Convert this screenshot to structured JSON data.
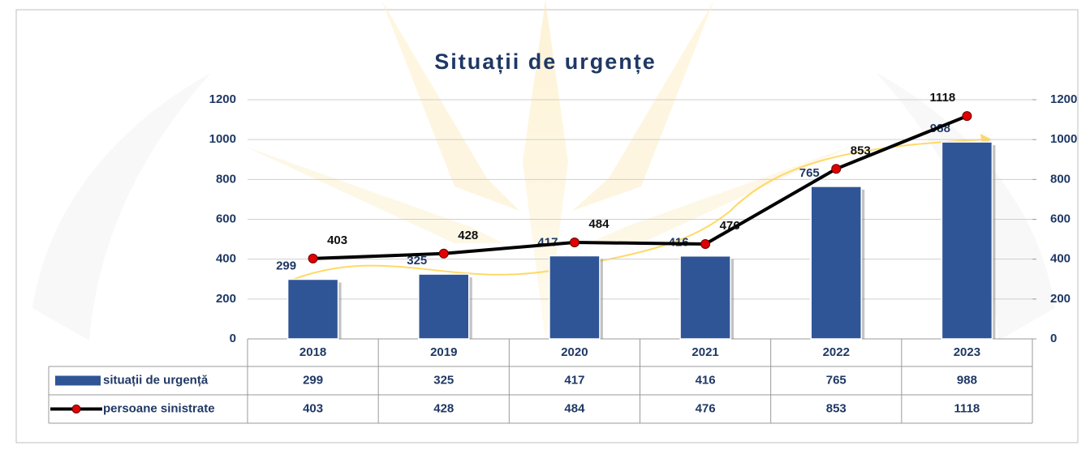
{
  "chart_data": {
    "type": "bar-line",
    "title": "Situații de urgențe",
    "categories": [
      "2018",
      "2019",
      "2020",
      "2021",
      "2022",
      "2023"
    ],
    "series": [
      {
        "name": "situații de urgență",
        "type": "bar",
        "color": "#2f5597",
        "values": [
          299,
          325,
          417,
          416,
          765,
          988
        ]
      },
      {
        "name": "persoane sinistrate",
        "type": "line",
        "color": "#000000",
        "marker_color": "#e00000",
        "axis": "y2",
        "values": [
          403,
          428,
          484,
          476,
          853,
          1118
        ]
      }
    ],
    "ylim": [
      0,
      1200
    ],
    "yticks": [
      0,
      200,
      400,
      600,
      800,
      1000,
      1200
    ],
    "y2lim": [
      0,
      1200
    ],
    "y2ticks": [
      0,
      200,
      400,
      600,
      800,
      1000,
      1200
    ],
    "grid": true,
    "data_table": true
  }
}
